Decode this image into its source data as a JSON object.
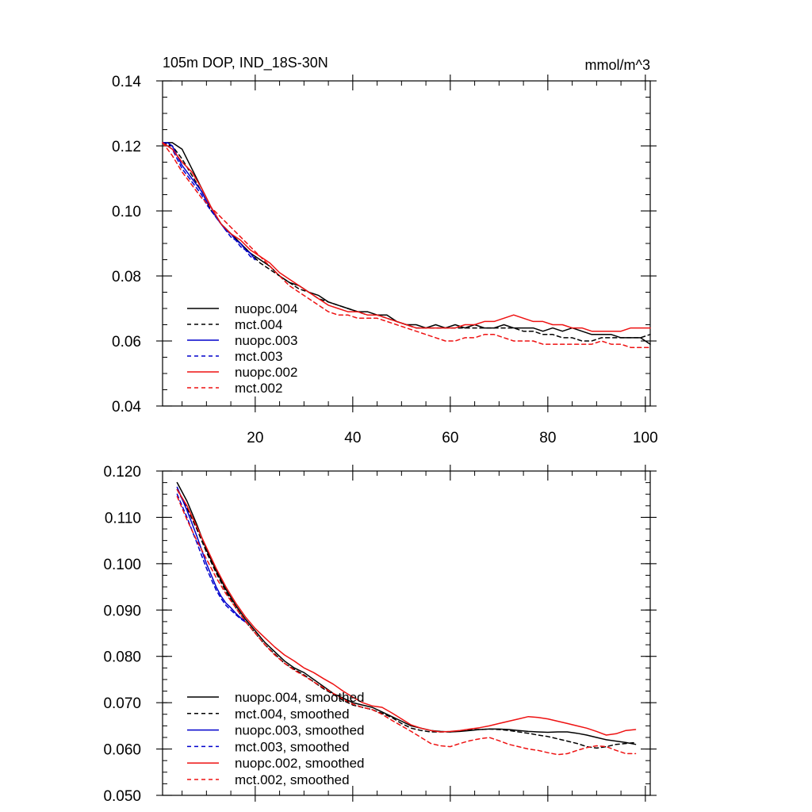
{
  "chart_data": [
    {
      "type": "line",
      "title": "105m DOP, IND_18S-30N",
      "units": "mmol/m^3",
      "xlabel": "",
      "ylabel": "",
      "xlim": [
        1,
        101
      ],
      "ylim": [
        0.04,
        0.14
      ],
      "xticks": [
        20,
        40,
        60,
        80,
        100
      ],
      "xtick_labels": [
        "20",
        "40",
        "60",
        "80",
        "100"
      ],
      "yticks": [
        0.04,
        0.06,
        0.08,
        0.1,
        0.12,
        0.14
      ],
      "ytick_labels": [
        "0.04",
        "0.06",
        "0.08",
        "0.10",
        "0.12",
        "0.14"
      ],
      "legend_position": "bottom-left",
      "series": [
        {
          "name": "nuopc.004",
          "color": "#000000",
          "dash": "solid",
          "x": [
            1,
            3,
            5,
            7,
            9,
            11,
            13,
            15,
            17,
            19,
            21,
            23,
            25,
            27,
            29,
            31,
            33,
            35,
            37,
            39,
            41,
            43,
            45,
            47,
            49,
            51,
            53,
            55,
            57,
            59,
            61,
            63,
            65,
            67,
            69,
            71,
            73,
            75,
            77,
            79,
            81,
            83,
            85,
            87,
            89,
            91,
            93,
            95,
            97,
            99,
            101
          ],
          "values": [
            0.121,
            0.121,
            0.119,
            0.113,
            0.107,
            0.101,
            0.096,
            0.093,
            0.09,
            0.087,
            0.085,
            0.083,
            0.08,
            0.078,
            0.077,
            0.075,
            0.074,
            0.072,
            0.071,
            0.07,
            0.069,
            0.069,
            0.068,
            0.068,
            0.066,
            0.065,
            0.065,
            0.064,
            0.065,
            0.064,
            0.065,
            0.064,
            0.065,
            0.064,
            0.064,
            0.065,
            0.064,
            0.064,
            0.064,
            0.063,
            0.064,
            0.063,
            0.064,
            0.063,
            0.062,
            0.062,
            0.062,
            0.061,
            0.061,
            0.061,
            0.059
          ]
        },
        {
          "name": "mct.004",
          "color": "#000000",
          "dash": "dashed",
          "x": [
            1,
            3,
            5,
            7,
            9,
            11,
            13,
            15,
            17,
            19,
            21,
            23,
            25,
            27,
            29,
            31,
            33,
            35,
            37,
            39,
            41,
            43,
            45,
            47,
            49,
            51,
            53,
            55,
            57,
            59,
            61,
            63,
            65,
            67,
            69,
            71,
            73,
            75,
            77,
            79,
            81,
            83,
            85,
            87,
            89,
            91,
            93,
            95,
            97,
            99,
            101
          ],
          "values": [
            0.121,
            0.12,
            0.116,
            0.111,
            0.106,
            0.1,
            0.096,
            0.093,
            0.09,
            0.087,
            0.084,
            0.082,
            0.08,
            0.078,
            0.076,
            0.075,
            0.073,
            0.072,
            0.071,
            0.07,
            0.069,
            0.068,
            0.068,
            0.067,
            0.066,
            0.065,
            0.064,
            0.064,
            0.064,
            0.064,
            0.064,
            0.064,
            0.064,
            0.064,
            0.064,
            0.064,
            0.064,
            0.063,
            0.063,
            0.062,
            0.062,
            0.061,
            0.061,
            0.06,
            0.06,
            0.061,
            0.061,
            0.061,
            0.061,
            0.061,
            0.062
          ]
        },
        {
          "name": "nuopc.003",
          "color": "#0000cc",
          "dash": "solid",
          "x": [
            1,
            2,
            3,
            4,
            5,
            6,
            7,
            8,
            9,
            10,
            11,
            12,
            13,
            14,
            15,
            16,
            17,
            18,
            19,
            20
          ],
          "values": [
            0.121,
            0.121,
            0.12,
            0.117,
            0.114,
            0.112,
            0.11,
            0.108,
            0.106,
            0.103,
            0.101,
            0.098,
            0.096,
            0.094,
            0.093,
            0.091,
            0.09,
            0.088,
            0.087,
            0.085
          ]
        },
        {
          "name": "mct.003",
          "color": "#0000cc",
          "dash": "dashed",
          "x": [
            1,
            2,
            3,
            4,
            5,
            6,
            7,
            8,
            9,
            10,
            11,
            12,
            13,
            14,
            15,
            16,
            17,
            18,
            19,
            20
          ],
          "values": [
            0.121,
            0.12,
            0.119,
            0.116,
            0.113,
            0.111,
            0.109,
            0.107,
            0.105,
            0.102,
            0.1,
            0.098,
            0.096,
            0.094,
            0.092,
            0.091,
            0.089,
            0.088,
            0.086,
            0.085
          ]
        },
        {
          "name": "nuopc.002",
          "color": "#ee1111",
          "dash": "solid",
          "x": [
            1,
            3,
            5,
            7,
            9,
            11,
            13,
            15,
            17,
            19,
            21,
            23,
            25,
            27,
            29,
            31,
            33,
            35,
            37,
            39,
            41,
            43,
            45,
            47,
            49,
            51,
            53,
            55,
            57,
            59,
            61,
            63,
            65,
            67,
            69,
            71,
            73,
            75,
            77,
            79,
            81,
            83,
            85,
            87,
            89,
            91,
            93,
            95,
            97,
            99,
            101
          ],
          "values": [
            0.121,
            0.119,
            0.115,
            0.112,
            0.107,
            0.101,
            0.096,
            0.093,
            0.091,
            0.088,
            0.086,
            0.084,
            0.081,
            0.079,
            0.077,
            0.075,
            0.073,
            0.071,
            0.07,
            0.069,
            0.069,
            0.068,
            0.068,
            0.067,
            0.066,
            0.065,
            0.064,
            0.064,
            0.064,
            0.064,
            0.064,
            0.065,
            0.065,
            0.066,
            0.066,
            0.067,
            0.068,
            0.067,
            0.066,
            0.066,
            0.065,
            0.065,
            0.064,
            0.064,
            0.063,
            0.063,
            0.063,
            0.063,
            0.064,
            0.064,
            0.064
          ]
        },
        {
          "name": "mct.002",
          "color": "#ee1111",
          "dash": "dashed",
          "x": [
            1,
            3,
            5,
            7,
            9,
            11,
            13,
            15,
            17,
            19,
            21,
            23,
            25,
            27,
            29,
            31,
            33,
            35,
            37,
            39,
            41,
            43,
            45,
            47,
            49,
            51,
            53,
            55,
            57,
            59,
            61,
            63,
            65,
            67,
            69,
            71,
            73,
            75,
            77,
            79,
            81,
            83,
            85,
            87,
            89,
            91,
            93,
            95,
            97,
            99,
            101
          ],
          "values": [
            0.121,
            0.117,
            0.112,
            0.108,
            0.104,
            0.101,
            0.098,
            0.095,
            0.092,
            0.089,
            0.086,
            0.083,
            0.08,
            0.077,
            0.075,
            0.073,
            0.071,
            0.069,
            0.068,
            0.068,
            0.067,
            0.067,
            0.067,
            0.066,
            0.065,
            0.064,
            0.063,
            0.062,
            0.061,
            0.06,
            0.06,
            0.061,
            0.061,
            0.062,
            0.062,
            0.061,
            0.06,
            0.06,
            0.06,
            0.059,
            0.059,
            0.059,
            0.059,
            0.059,
            0.059,
            0.06,
            0.059,
            0.059,
            0.058,
            0.058,
            0.058
          ]
        }
      ]
    },
    {
      "type": "line",
      "title": "",
      "xlabel": "",
      "ylabel": "",
      "xlim": [
        1,
        101
      ],
      "ylim": [
        0.05,
        0.12
      ],
      "xticks": [
        20,
        40,
        60,
        80,
        100
      ],
      "xtick_labels": [
        "",
        "",
        "",
        "",
        ""
      ],
      "yticks": [
        0.05,
        0.06,
        0.07,
        0.08,
        0.09,
        0.1,
        0.11,
        0.12
      ],
      "ytick_labels": [
        "0.050",
        "0.060",
        "0.070",
        "0.080",
        "0.090",
        "0.100",
        "0.110",
        "0.120"
      ],
      "legend_position": "bottom-left",
      "series": [
        {
          "name": "nuopc.004, smoothed",
          "color": "#000000",
          "dash": "solid",
          "x": [
            4,
            6,
            8,
            10,
            12,
            14,
            16,
            18,
            20,
            22,
            24,
            26,
            28,
            30,
            32,
            34,
            36,
            38,
            40,
            42,
            44,
            46,
            48,
            50,
            52,
            54,
            56,
            58,
            60,
            62,
            64,
            66,
            68,
            70,
            72,
            74,
            76,
            78,
            80,
            82,
            84,
            86,
            88,
            90,
            92,
            94,
            96,
            98
          ],
          "values": [
            0.1175,
            0.1135,
            0.1085,
            0.103,
            0.0985,
            0.0945,
            0.091,
            0.088,
            0.0855,
            0.083,
            0.081,
            0.079,
            0.0775,
            0.0765,
            0.075,
            0.0735,
            0.072,
            0.071,
            0.07,
            0.0695,
            0.069,
            0.068,
            0.067,
            0.066,
            0.065,
            0.0645,
            0.064,
            0.0638,
            0.0637,
            0.0638,
            0.064,
            0.0642,
            0.0643,
            0.0643,
            0.0642,
            0.064,
            0.0638,
            0.0637,
            0.0636,
            0.0637,
            0.0637,
            0.0634,
            0.063,
            0.0625,
            0.062,
            0.0617,
            0.0614,
            0.061
          ]
        },
        {
          "name": "mct.004, smoothed",
          "color": "#000000",
          "dash": "dashed",
          "x": [
            4,
            6,
            8,
            10,
            12,
            14,
            16,
            18,
            20,
            22,
            24,
            26,
            28,
            30,
            32,
            34,
            36,
            38,
            40,
            42,
            44,
            46,
            48,
            50,
            52,
            54,
            56,
            58,
            60,
            62,
            64,
            66,
            68,
            70,
            72,
            74,
            76,
            78,
            80,
            82,
            84,
            86,
            88,
            90,
            92,
            94,
            96,
            98
          ],
          "values": [
            0.116,
            0.112,
            0.1075,
            0.1025,
            0.098,
            0.094,
            0.0905,
            0.0875,
            0.085,
            0.0825,
            0.0805,
            0.0785,
            0.0772,
            0.076,
            0.0745,
            0.073,
            0.0718,
            0.0705,
            0.0695,
            0.069,
            0.0685,
            0.0677,
            0.0668,
            0.0655,
            0.0645,
            0.064,
            0.0637,
            0.0637,
            0.0637,
            0.0639,
            0.0642,
            0.0642,
            0.0643,
            0.0642,
            0.064,
            0.0637,
            0.0634,
            0.063,
            0.0627,
            0.0622,
            0.0617,
            0.0612,
            0.0605,
            0.0602,
            0.0605,
            0.061,
            0.0612,
            0.0614
          ]
        },
        {
          "name": "nuopc.003, smoothed",
          "color": "#0000cc",
          "dash": "solid",
          "x": [
            4,
            5,
            6,
            7,
            8,
            9,
            10,
            11,
            12,
            13,
            14,
            15,
            16,
            17,
            18
          ],
          "values": [
            0.1165,
            0.114,
            0.1115,
            0.1088,
            0.106,
            0.103,
            0.1,
            0.0975,
            0.095,
            0.093,
            0.0915,
            0.0905,
            0.0893,
            0.0883,
            0.0875
          ]
        },
        {
          "name": "mct.003, smoothed",
          "color": "#0000cc",
          "dash": "dashed",
          "x": [
            4,
            5,
            6,
            7,
            8,
            9,
            10,
            11,
            12,
            13,
            14,
            15,
            16,
            17,
            18
          ],
          "values": [
            0.115,
            0.1125,
            0.11,
            0.1073,
            0.1046,
            0.1018,
            0.099,
            0.0966,
            0.0943,
            0.0925,
            0.091,
            0.09,
            0.089,
            0.0881,
            0.0874
          ]
        },
        {
          "name": "nuopc.002, smoothed",
          "color": "#ee1111",
          "dash": "solid",
          "x": [
            4,
            6,
            8,
            10,
            12,
            14,
            16,
            18,
            20,
            22,
            24,
            26,
            28,
            30,
            32,
            34,
            36,
            38,
            40,
            42,
            44,
            46,
            48,
            50,
            52,
            54,
            56,
            58,
            60,
            62,
            64,
            66,
            68,
            70,
            72,
            74,
            76,
            78,
            80,
            82,
            84,
            86,
            88,
            90,
            92,
            94,
            96,
            98
          ],
          "values": [
            0.116,
            0.1125,
            0.108,
            0.1035,
            0.099,
            0.095,
            0.0915,
            0.0885,
            0.086,
            0.084,
            0.082,
            0.0803,
            0.079,
            0.0775,
            0.0765,
            0.0752,
            0.074,
            0.0725,
            0.0712,
            0.07,
            0.0693,
            0.069,
            0.0678,
            0.0665,
            0.0652,
            0.0645,
            0.064,
            0.0637,
            0.0638,
            0.064,
            0.0643,
            0.0646,
            0.065,
            0.0655,
            0.066,
            0.0665,
            0.067,
            0.0668,
            0.0665,
            0.066,
            0.0655,
            0.065,
            0.0645,
            0.0638,
            0.063,
            0.0633,
            0.064,
            0.0642
          ]
        },
        {
          "name": "mct.002, smoothed",
          "color": "#ee1111",
          "dash": "dashed",
          "x": [
            4,
            6,
            8,
            10,
            12,
            14,
            16,
            18,
            20,
            22,
            24,
            26,
            28,
            30,
            32,
            34,
            36,
            38,
            40,
            42,
            44,
            46,
            48,
            50,
            52,
            54,
            56,
            58,
            60,
            62,
            64,
            66,
            68,
            70,
            72,
            74,
            76,
            78,
            80,
            82,
            84,
            86,
            88,
            90,
            92,
            94,
            96,
            98
          ],
          "values": [
            0.1145,
            0.1095,
            0.105,
            0.101,
            0.097,
            0.0935,
            0.0905,
            0.0875,
            0.085,
            0.0825,
            0.0803,
            0.0785,
            0.077,
            0.0758,
            0.0745,
            0.0732,
            0.072,
            0.0708,
            0.0697,
            0.069,
            0.0685,
            0.0675,
            0.0662,
            0.065,
            0.0638,
            0.0625,
            0.0612,
            0.0607,
            0.0605,
            0.0612,
            0.0618,
            0.0622,
            0.0625,
            0.0618,
            0.061,
            0.0605,
            0.06,
            0.0597,
            0.0592,
            0.0588,
            0.059,
            0.0597,
            0.0603,
            0.0607,
            0.0605,
            0.0597,
            0.059,
            0.059
          ]
        }
      ]
    }
  ]
}
